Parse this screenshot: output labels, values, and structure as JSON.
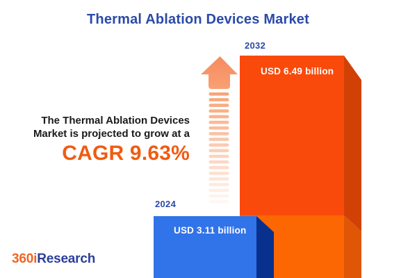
{
  "title": "Thermal Ablation Devices Market",
  "description": {
    "line1": "The Thermal Ablation Devices",
    "line2": "Market is projected to grow at a",
    "cagr": "CAGR 9.63%"
  },
  "chart_data": {
    "type": "bar",
    "title": "Thermal Ablation Devices Market",
    "categories": [
      "2024",
      "2032"
    ],
    "values": [
      3.11,
      6.49
    ],
    "value_unit": "USD billion",
    "bar_labels": [
      "USD 3.11 billion",
      "USD 6.49 billion"
    ],
    "cagr_percent": 9.63,
    "legend": "none",
    "grid": "off",
    "style": "3d-isometric-bars-with-fading-growth-arrow"
  },
  "bars": {
    "y2024": {
      "year": "2024",
      "value_label": "USD 3.11 billion"
    },
    "y2032": {
      "year": "2032",
      "value_label": "USD 6.49 billion"
    }
  },
  "logo": {
    "prefix": "360i",
    "suffix": "Research"
  },
  "colors": {
    "background": "#FFFFFF",
    "title_blue": "#2B4AA8",
    "text_dark": "#1A1A1A",
    "cagr_orange": "#F15B10",
    "bar2024_front": "#3173E8",
    "bar2024_side": "#08308D",
    "bar2032_front_top": "#F94A0B",
    "bar2032_front_bottom": "#FD6703",
    "bar2032_side_top": "#D14106",
    "bar2032_side_bottom": "#DF5606",
    "arrow_top": "#F58A5E",
    "arrow_mid": "#F9A87C",
    "arrow_bottom": "#FFFEFD",
    "label_white": "#FFFFFF",
    "logo_orange": "#F26522",
    "logo_blue": "#2A3F9B"
  }
}
